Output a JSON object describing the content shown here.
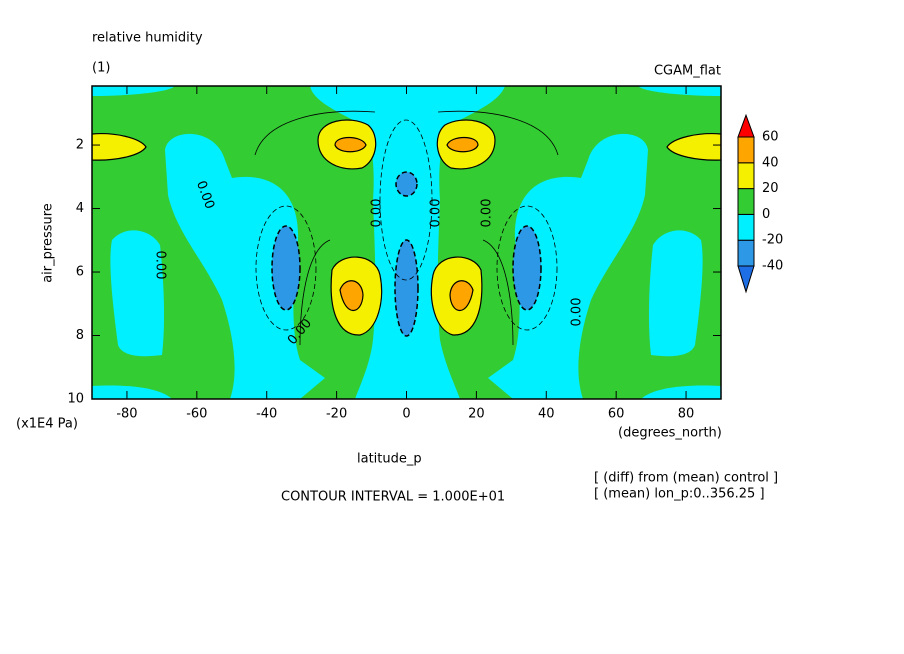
{
  "chart_data": {
    "type": "contour",
    "title": "relative humidity",
    "subtitle": "(1)",
    "dataset": "CGAM_flat",
    "x_label": "latitude_p",
    "x_unit": "(degrees_north)",
    "y_label": "air_pressure",
    "y_unit": "(x1E4 Pa)",
    "xlim": [
      -90,
      90
    ],
    "xticks": [
      -80,
      -60,
      -40,
      -20,
      0,
      20,
      40,
      60,
      80
    ],
    "ylim": [
      10,
      0.14
    ],
    "yticks": [
      2,
      4,
      6,
      8,
      10
    ],
    "levels": [
      -40,
      -20,
      0,
      20,
      40,
      60
    ],
    "colors": [
      "#1e6ee6",
      "#2c98e6",
      "#00f0ff",
      "#33cc33",
      "#f5f000",
      "#ffa500",
      "#ff0000"
    ],
    "contour_label": "0.00",
    "annotations": [
      "CONTOUR INTERVAL = 1.000E+01",
      "[ (diff) from (mean) control ]",
      "[ (mean) lon_p:0..356.25 ]"
    ]
  }
}
